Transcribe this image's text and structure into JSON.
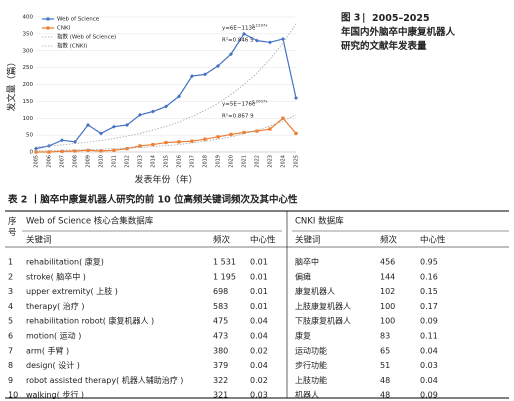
{
  "chart_data": {
    "type": "line",
    "y_label": "发文量（篇）",
    "x_label": "发表年份（年）",
    "categories": [
      "2005",
      "2006",
      "2007",
      "2008",
      "2009",
      "2010",
      "2011",
      "2012",
      "2013",
      "2014",
      "2015",
      "2016",
      "2017",
      "2018",
      "2019",
      "2020",
      "2021",
      "2022",
      "2023",
      "2024",
      "2025"
    ],
    "ylim": [
      0,
      400
    ],
    "yticks": [
      0,
      50,
      100,
      150,
      200,
      250,
      300,
      350,
      400
    ],
    "grid": true,
    "series": [
      {
        "name": "Web of Science",
        "color": "#4472c4",
        "marker": "diamond",
        "values": [
          10,
          18,
          35,
          30,
          80,
          55,
          75,
          80,
          110,
          120,
          135,
          165,
          225,
          230,
          255,
          290,
          350,
          330,
          325,
          335,
          160
        ]
      },
      {
        "name": "CNKI",
        "color": "#ed7d31",
        "marker": "square",
        "values": [
          0,
          0,
          2,
          3,
          5,
          3,
          5,
          10,
          18,
          22,
          28,
          30,
          32,
          38,
          45,
          52,
          58,
          62,
          68,
          100,
          55
        ]
      },
      {
        "name": "指数 (Web of Science)",
        "color": "#a6a6a6",
        "dashed": true,
        "values": [
          15,
          18,
          21,
          25,
          29,
          34,
          40,
          47,
          55,
          65,
          76,
          89,
          105,
          123,
          144,
          170,
          200,
          234,
          275,
          323,
          380
        ]
      },
      {
        "name": "指数 (CNKI)",
        "color": "#a6a6a6",
        "dashed": true,
        "values": [
          3,
          4,
          5,
          6,
          7,
          8,
          10,
          11,
          13,
          16,
          19,
          22,
          27,
          32,
          38,
          45,
          54,
          65,
          77,
          92,
          110
        ]
      }
    ],
    "annotations": [
      {
        "text": "y=6E−113e",
        "sup": "0.1297x",
        "r2": "R²=0.846 5"
      },
      {
        "text": "y=5E−176e",
        "sup": "0.2007x",
        "r2": "R²=0.867 9"
      }
    ]
  },
  "figure_caption": {
    "label": "图 3",
    "text": "2005–2025 年国内外脑卒中康复机器人研究的文献年发表量"
  },
  "table": {
    "title": "表 2 丨脑卒中康复机器人研究的前 10 位高频关键词频次及其中心性",
    "group_headers": [
      "序号",
      "Web of Science 核心合集数据库",
      "CNKI 数据库"
    ],
    "headers": [
      "关键词",
      "频次",
      "中心性",
      "关键词",
      "频次",
      "中心性"
    ],
    "rows": [
      [
        "1",
        "rehabilitation( 康复)",
        "1 531",
        "0.01",
        "脑卒中",
        "456",
        "0.95"
      ],
      [
        "2",
        "stroke( 脑卒中 )",
        "1 195",
        "0.01",
        "偏瘫",
        "144",
        "0.16"
      ],
      [
        "3",
        "upper extremity( 上肢 )",
        "698",
        "0.01",
        "康复机器人",
        "102",
        "0.15"
      ],
      [
        "4",
        "therapy( 治疗 )",
        "583",
        "0.01",
        "上肢康复机器人",
        "100",
        "0.17"
      ],
      [
        "5",
        "rehabilitation robot( 康复机器人 )",
        "475",
        "0.04",
        "下肢康复机器人",
        "100",
        "0.09"
      ],
      [
        "6",
        "motion( 运动 )",
        "473",
        "0.04",
        "康复",
        "83",
        "0.11"
      ],
      [
        "7",
        "arm( 手臂 )",
        "380",
        "0.02",
        "运动功能",
        "65",
        "0.04"
      ],
      [
        "8",
        "design( 设计 )",
        "379",
        "0.04",
        "步行功能",
        "51",
        "0.03"
      ],
      [
        "9",
        "robot assisted therapy( 机器人辅助治疗 )",
        "322",
        "0.02",
        "上肢功能",
        "48",
        "0.04"
      ],
      [
        "10",
        "walking( 步行 )",
        "321",
        "0.03",
        "机器人",
        "48",
        "0.09"
      ]
    ]
  }
}
